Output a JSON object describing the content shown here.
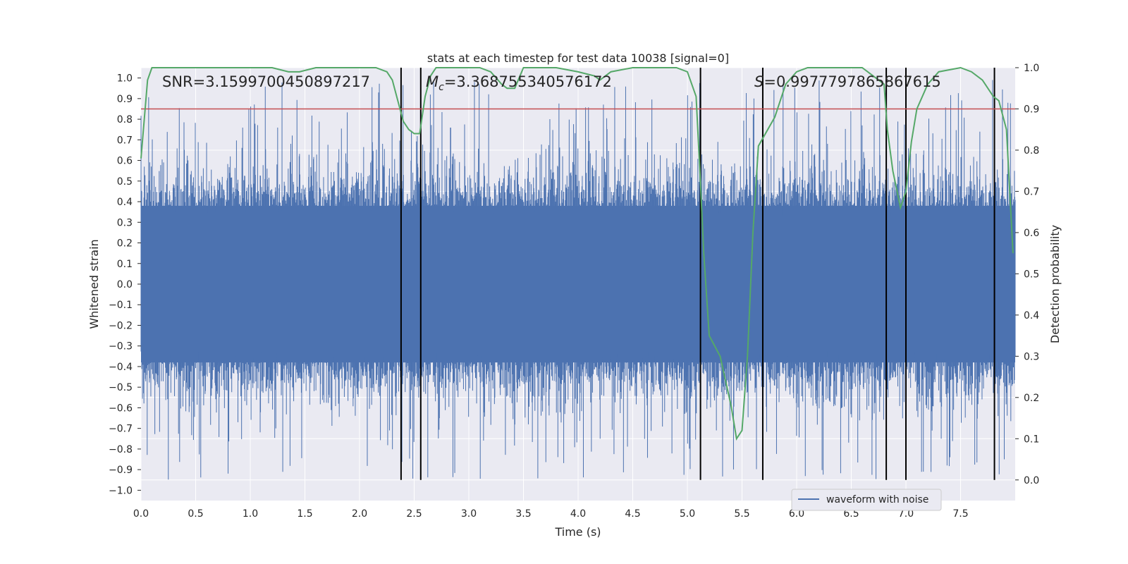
{
  "chart_data": {
    "type": "line",
    "title": "stats at each timestep for test data 10038 [signal=0]",
    "xlabel": "Time (s)",
    "ylabel_left": "Whitened strain",
    "ylabel_right": "Detection probability",
    "xlim": [
      0,
      8
    ],
    "ylim_left": [
      -1.05,
      1.05
    ],
    "ylim_right": [
      -0.05,
      1.0
    ],
    "x_ticks": [
      "0.0",
      "0.5",
      "1.0",
      "1.5",
      "2.0",
      "2.5",
      "3.0",
      "3.5",
      "4.0",
      "4.5",
      "5.0",
      "5.5",
      "6.0",
      "6.5",
      "7.0",
      "7.5"
    ],
    "y_left_ticks": [
      "1.0",
      "0.9",
      "0.8",
      "0.7",
      "0.6",
      "0.5",
      "0.4",
      "0.3",
      "0.2",
      "0.1",
      "0.0",
      "−0.1",
      "−0.2",
      "−0.3",
      "−0.4",
      "−0.5",
      "−0.6",
      "−0.7",
      "−0.8",
      "−0.9",
      "−1.0"
    ],
    "y_right_ticks": [
      "1.0",
      "0.9",
      "0.8",
      "0.7",
      "0.6",
      "0.5",
      "0.4",
      "0.3",
      "0.2",
      "0.1",
      "0.0"
    ],
    "threshold": 0.9,
    "annotations": {
      "snr": "SNR=3.1599700450897217",
      "mc_symbol": "M",
      "mc_sub": "c",
      "mc_value": "=3.368755340576172",
      "s_symbol": "S",
      "s_value": "=0.9977797865867615"
    },
    "vertical_lines_s": [
      2.38,
      2.56,
      5.12,
      5.69,
      6.82,
      7.0,
      7.81
    ],
    "series": [
      {
        "name": "waveform with noise",
        "color": "#4c72b0",
        "description_values": "whitened noise strain, dense, range about -0.95 to 1.0"
      },
      {
        "color": "#55a868",
        "x": [
          0.0,
          0.06,
          0.1,
          0.2,
          0.4,
          0.6,
          0.8,
          1.0,
          1.2,
          1.35,
          1.45,
          1.6,
          1.8,
          2.0,
          2.15,
          2.25,
          2.3,
          2.35,
          2.4,
          2.45,
          2.5,
          2.55,
          2.6,
          2.65,
          2.7,
          2.8,
          3.0,
          3.1,
          3.2,
          3.3,
          3.35,
          3.42,
          3.5,
          3.6,
          3.8,
          4.0,
          4.15,
          4.2,
          4.3,
          4.5,
          4.7,
          4.9,
          5.0,
          5.08,
          5.12,
          5.15,
          5.2,
          5.3,
          5.4,
          5.45,
          5.5,
          5.55,
          5.6,
          5.65,
          5.8,
          5.9,
          6.0,
          6.1,
          6.4,
          6.6,
          6.7,
          6.8,
          6.83,
          6.88,
          6.95,
          7.0,
          7.05,
          7.1,
          7.2,
          7.3,
          7.5,
          7.6,
          7.7,
          7.8,
          7.85,
          7.92,
          7.98
        ],
        "values": [
          0.78,
          0.97,
          1.0,
          1.0,
          1.0,
          1.0,
          1.0,
          1.0,
          1.0,
          0.99,
          0.99,
          1.0,
          1.0,
          1.0,
          1.0,
          0.99,
          0.97,
          0.92,
          0.87,
          0.85,
          0.84,
          0.84,
          0.93,
          0.98,
          1.0,
          1.0,
          1.0,
          1.0,
          0.99,
          0.96,
          0.95,
          0.95,
          1.0,
          1.0,
          1.0,
          0.99,
          0.98,
          0.97,
          0.99,
          1.0,
          1.0,
          1.0,
          0.99,
          0.93,
          0.72,
          0.55,
          0.35,
          0.3,
          0.18,
          0.1,
          0.12,
          0.3,
          0.6,
          0.81,
          0.88,
          0.96,
          0.99,
          1.0,
          1.0,
          1.0,
          0.98,
          0.96,
          0.85,
          0.75,
          0.66,
          0.7,
          0.82,
          0.9,
          0.96,
          0.99,
          1.0,
          0.99,
          0.97,
          0.93,
          0.92,
          0.85,
          0.55
        ]
      }
    ],
    "legend": [
      "waveform with noise"
    ],
    "legend_placement": "lower-center"
  }
}
